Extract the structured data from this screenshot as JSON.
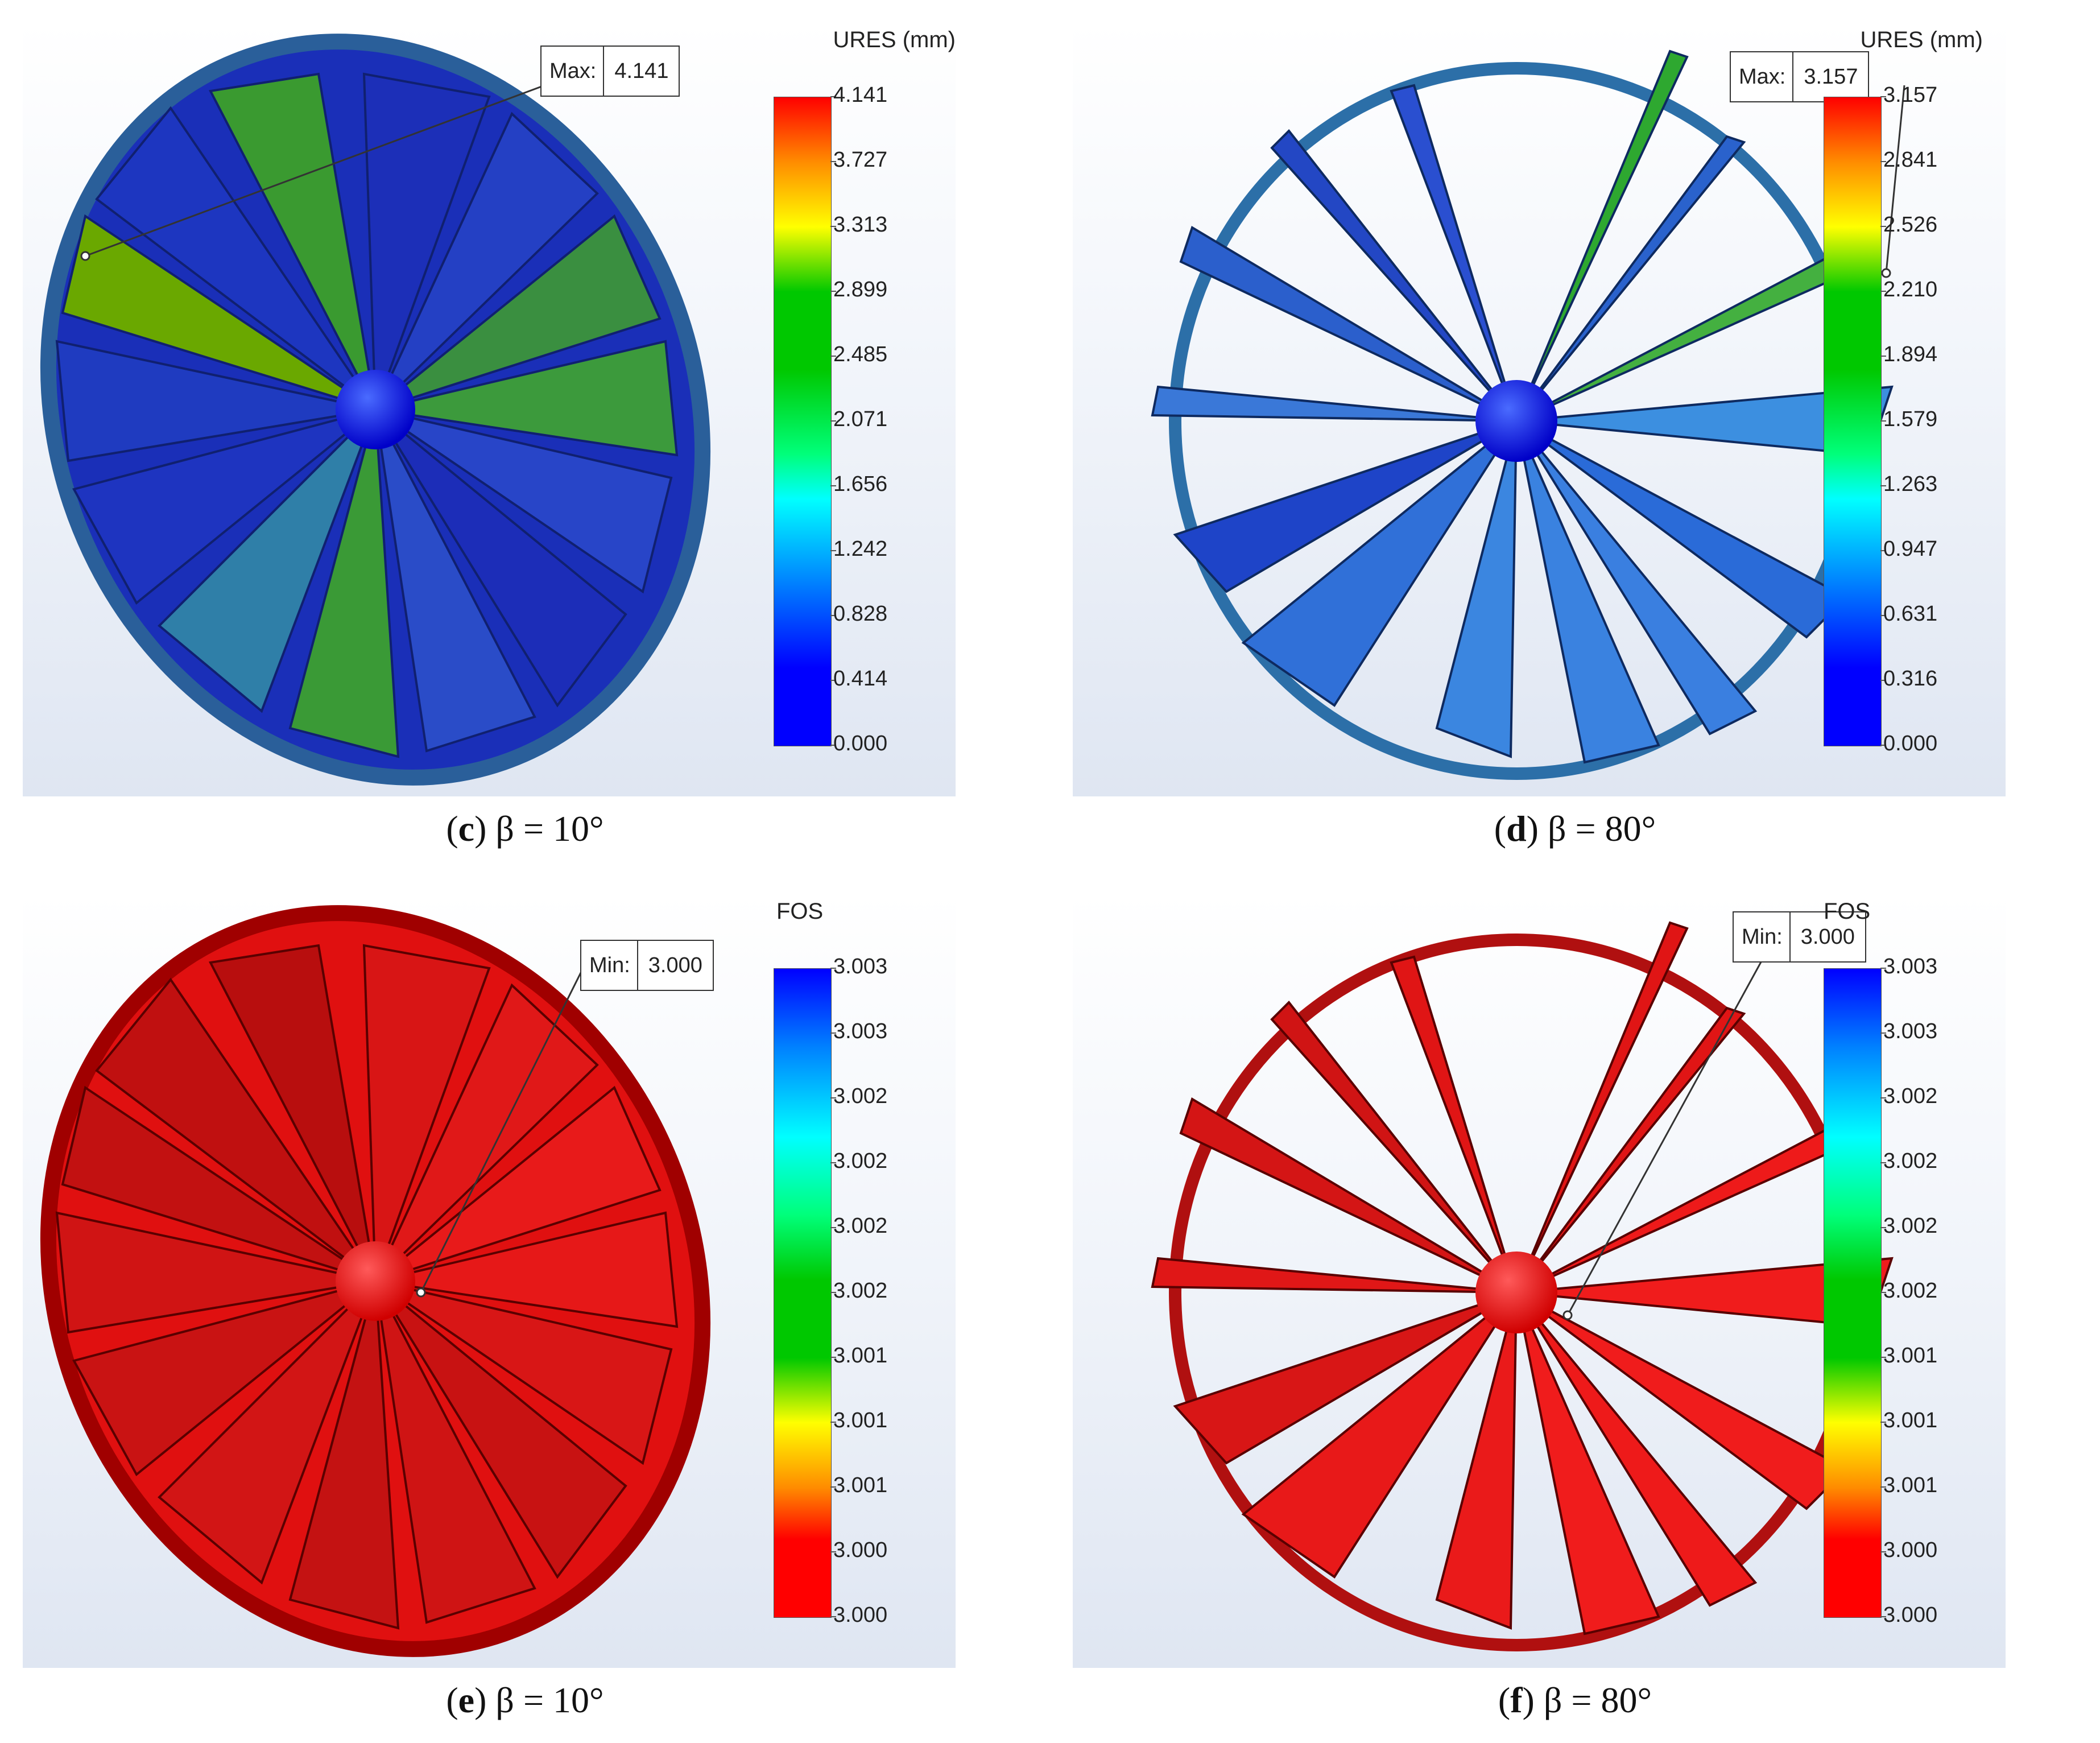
{
  "panels": [
    {
      "caption_letter": "c",
      "caption_rest": ") β = 10°",
      "legend_title": "URES (mm)",
      "ticks": [
        "4.141",
        "3.727",
        "3.313",
        "2.899",
        "2.485",
        "2.071",
        "1.656",
        "1.242",
        "0.828",
        "0.414",
        "0.000"
      ],
      "callout_key": "Max:",
      "callout_value": "4.141",
      "scale": "ures"
    },
    {
      "caption_letter": "d",
      "caption_rest": ") β = 80°",
      "legend_title": "URES (mm)",
      "ticks": [
        "3.157",
        "2.841",
        "2.526",
        "2.210",
        "1.894",
        "1.579",
        "1.263",
        "0.947",
        "0.631",
        "0.316",
        "0.000"
      ],
      "callout_key": "Max:",
      "callout_value": "3.157",
      "scale": "ures"
    },
    {
      "caption_letter": "e",
      "caption_rest": ") β = 10°",
      "legend_title": "FOS",
      "ticks": [
        "3.003",
        "3.003",
        "3.002",
        "3.002",
        "3.002",
        "3.002",
        "3.001",
        "3.001",
        "3.001",
        "3.000",
        "3.000"
      ],
      "callout_key": "Min:",
      "callout_value": "3.000",
      "scale": "fos"
    },
    {
      "caption_letter": "f",
      "caption_rest": ") β = 80°",
      "legend_title": "FOS",
      "ticks": [
        "3.003",
        "3.003",
        "3.002",
        "3.002",
        "3.002",
        "3.002",
        "3.001",
        "3.001",
        "3.001",
        "3.000",
        "3.000"
      ],
      "callout_key": "Min:",
      "callout_value": "3.000",
      "scale": "fos"
    }
  ],
  "colors": {
    "ures_scale": [
      "#ff0000",
      "#ff8800",
      "#ffff00",
      "#00cc00",
      "#00ee66",
      "#00ffff",
      "#0088ff",
      "#0000ff"
    ],
    "fos_scale": [
      "#0000ff",
      "#0088ff",
      "#00ffff",
      "#00cc00",
      "#ffff00",
      "#ff8800",
      "#ff0000"
    ],
    "frame_blue": "#1e5aa8",
    "frame_red": "#c01010"
  }
}
